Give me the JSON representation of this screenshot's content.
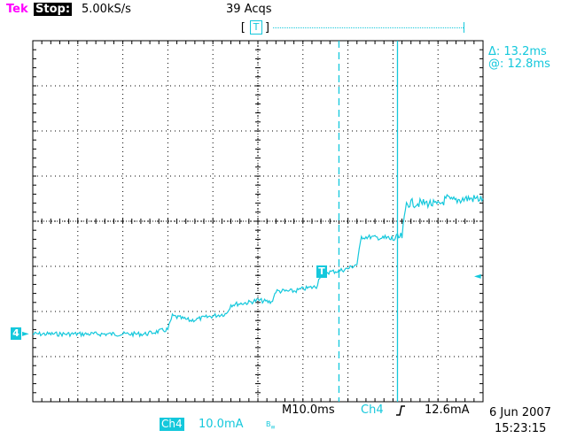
{
  "header": {
    "brand": "Tek",
    "run_state": "Stop:",
    "sample_rate": "5.00kS/s",
    "acquisitions": "39 Acqs",
    "trigger_position_marker": "T"
  },
  "cursor_readout": {
    "delta": "Δ: 13.2ms",
    "at": "@: 12.8ms"
  },
  "markers": {
    "channel_ground": "4",
    "trigger_level": "T",
    "trigger_level_arrow": "◄"
  },
  "footer": {
    "timebase": "M10.0ms",
    "trigger_source": "Ch4",
    "trigger_slope": "rising-edge",
    "trigger_level": "12.6mA",
    "channel_label": "Ch4",
    "channel_scale": "10.0mA",
    "bandwidth_icon": "bandwidth-limit-icon",
    "date": "6 Jun 2007",
    "time": "15:23:15"
  },
  "colors": {
    "trace": "#14c8dc",
    "grid": "#000000",
    "brand": "#ff00ff",
    "background": "#ffffff"
  },
  "chart_data": {
    "type": "line",
    "x_divisions": 10,
    "y_divisions": 8,
    "timebase_per_div": "10.0ms",
    "vertical_per_div": "10.0mA",
    "series": [
      {
        "x": [
          0,
          5,
          10,
          15,
          20,
          25,
          30,
          31,
          35,
          40,
          43,
          44,
          48,
          50,
          53,
          54,
          58,
          60,
          63,
          64,
          68,
          70,
          72,
          73,
          75,
          80,
          82,
          83,
          88,
          90,
          92,
          93,
          96,
          100
        ],
        "y": [
          -2.5,
          -2.5,
          -2.5,
          -2.5,
          -2.5,
          -2.5,
          -2.4,
          -2.1,
          -2.2,
          -2.1,
          -2.05,
          -1.85,
          -1.8,
          -1.75,
          -1.8,
          -1.55,
          -1.55,
          -1.5,
          -1.45,
          -1.15,
          -1.1,
          -1.05,
          -0.95,
          -0.35,
          -0.35,
          -0.4,
          -0.35,
          0.4,
          0.4,
          0.35,
          0.5,
          0.45,
          0.5,
          0.5
        ]
      }
    ],
    "cursors": [
      {
        "type": "dashed",
        "x": 68
      },
      {
        "type": "solid",
        "x": 81
      }
    ],
    "grid": true
  }
}
